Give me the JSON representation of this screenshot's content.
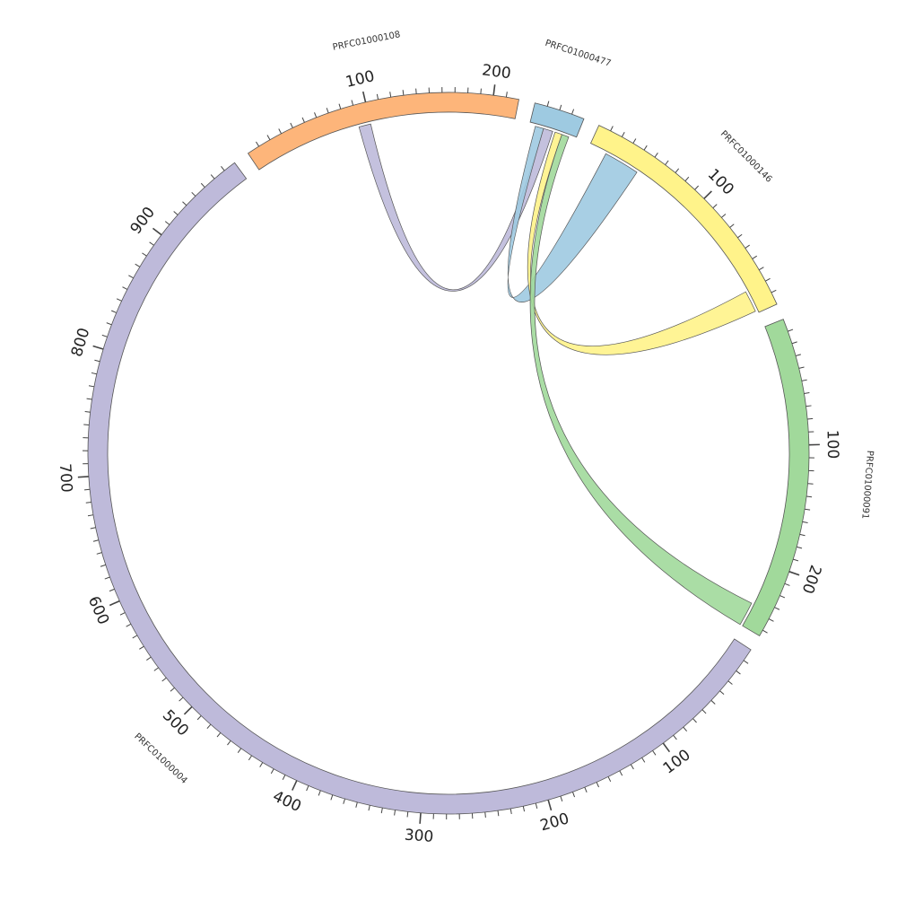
{
  "chart_data": {
    "type": "chord",
    "title": "",
    "segments": [
      {
        "name": "PRFC01000004",
        "length": 980,
        "color": "#bebada",
        "major_ticks": [
          100,
          200,
          300,
          400,
          500,
          600,
          700,
          800,
          900
        ]
      },
      {
        "name": "PRFC01000108",
        "length": 220,
        "color": "#fdb57a",
        "major_ticks": [
          100,
          200
        ]
      },
      {
        "name": "PRFC01000477",
        "length": 40,
        "color": "#9ecae1",
        "major_ticks": []
      },
      {
        "name": "PRFC01000146",
        "length": 200,
        "color": "#fff38a",
        "major_ticks": [
          100
        ]
      },
      {
        "name": "PRFC01000091",
        "length": 255,
        "color": "#a1d99b",
        "major_ticks": [
          100,
          200
        ]
      }
    ],
    "links": [
      {
        "source": "PRFC01000108",
        "source_range": [
          90,
          100
        ],
        "target": "PRFC01000477",
        "target_range": [
          12,
          20
        ],
        "color": "#bebada"
      },
      {
        "source": "PRFC01000477",
        "source_range": [
          5,
          12
        ],
        "target": "PRFC01000146",
        "target_range": [
          15,
          45
        ],
        "color": "#9ecae1"
      },
      {
        "source": "PRFC01000146",
        "source_range": [
          180,
          198
        ],
        "target": "PRFC01000477",
        "target_range": [
          22,
          28
        ],
        "color": "#fff38a"
      },
      {
        "source": "PRFC01000091",
        "source_range": [
          235,
          255
        ],
        "target": "PRFC01000477",
        "target_range": [
          28,
          34
        ],
        "color": "#a1d99b"
      }
    ]
  }
}
